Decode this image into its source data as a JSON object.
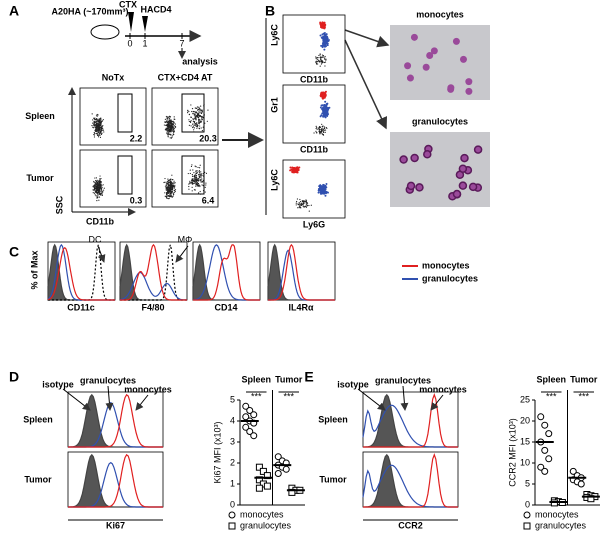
{
  "panels": {
    "A": {
      "label": "A",
      "timeline": {
        "model": "A20HA (~170mm³)",
        "treatment": "CTX",
        "transfer": "HACD4",
        "days": [
          0,
          1,
          7
        ],
        "endpoint": "analysis"
      },
      "columns": [
        "NoTx",
        "CTX+CD4 AT"
      ],
      "rows": [
        "Spleen",
        "Tumor"
      ],
      "x_axis": "CD11b",
      "y_axis": "SSC",
      "gate_percentages": [
        [
          2.2,
          20.3
        ],
        [
          0.3,
          6.4
        ]
      ]
    },
    "B": {
      "label": "B",
      "plots": [
        {
          "y_axis": "Ly6C",
          "x_axis": "CD11b"
        },
        {
          "y_axis": "Gr1",
          "x_axis": "CD11b"
        },
        {
          "y_axis": "Ly6C",
          "x_axis": "Ly6G"
        }
      ],
      "images": [
        "monocytes",
        "granulocytes"
      ]
    },
    "C": {
      "label": "C",
      "y_axis": "% of Max",
      "markers": [
        "CD11c",
        "F4/80",
        "CD14",
        "IL4Rα"
      ],
      "annotations": [
        "DC",
        "MΦ"
      ],
      "legend": [
        {
          "name": "monocytes",
          "color": "#e02020"
        },
        {
          "name": "granulocytes",
          "color": "#3050b0"
        }
      ]
    },
    "D": {
      "label": "D",
      "annotations": [
        "isotype",
        "granulocytes",
        "monocytes"
      ],
      "rows": [
        "Spleen",
        "Tumor"
      ],
      "x_axis": "Ki67",
      "dotplot": {
        "ylabel": "Ki67 MFI (x10³)",
        "ylim": [
          0,
          5
        ],
        "yticks": [
          0,
          1,
          2,
          3,
          4,
          5
        ],
        "groups": [
          "Spleen",
          "Tumor"
        ],
        "significance": [
          "***",
          "***"
        ],
        "series": [
          {
            "name": "monocytes",
            "marker": "circle",
            "values": [
              [
                4.7,
                4.5,
                4.3,
                4.2,
                4.0,
                3.9,
                3.7,
                3.5,
                3.3
              ],
              [
                2.3,
                2.1,
                2.0,
                1.9,
                1.8,
                1.7,
                1.5
              ]
            ],
            "means": [
              4.0,
              1.9
            ]
          },
          {
            "name": "granulocytes",
            "marker": "square",
            "values": [
              [
                1.8,
                1.6,
                1.4,
                1.2,
                1.0,
                0.9,
                0.8
              ],
              [
                0.8,
                0.7,
                0.7,
                0.6
              ]
            ],
            "means": [
              1.3,
              0.7
            ]
          }
        ]
      }
    },
    "E": {
      "label": "E",
      "annotations": [
        "isotype",
        "granulocytes",
        "monocytes"
      ],
      "rows": [
        "Spleen",
        "Tumor"
      ],
      "x_axis": "CCR2",
      "dotplot": {
        "ylabel": "CCR2 MFI (x10³)",
        "ylim": [
          0,
          25
        ],
        "yticks": [
          0,
          5,
          10,
          15,
          20,
          25
        ],
        "groups": [
          "Spleen",
          "Tumor"
        ],
        "significance": [
          "***",
          "***"
        ],
        "series": [
          {
            "name": "monocytes",
            "marker": "circle",
            "values": [
              [
                21,
                19,
                17,
                15,
                13,
                11,
                9,
                8
              ],
              [
                8,
                7,
                6.5,
                6,
                5.5,
                5
              ]
            ],
            "means": [
              15,
              6.5
            ]
          },
          {
            "name": "granulocytes",
            "marker": "square",
            "values": [
              [
                1,
                0.8,
                0.6,
                0.5
              ],
              [
                2.5,
                2.2,
                2,
                1.8,
                1.5
              ]
            ],
            "means": [
              0.7,
              2
            ]
          }
        ]
      }
    }
  }
}
